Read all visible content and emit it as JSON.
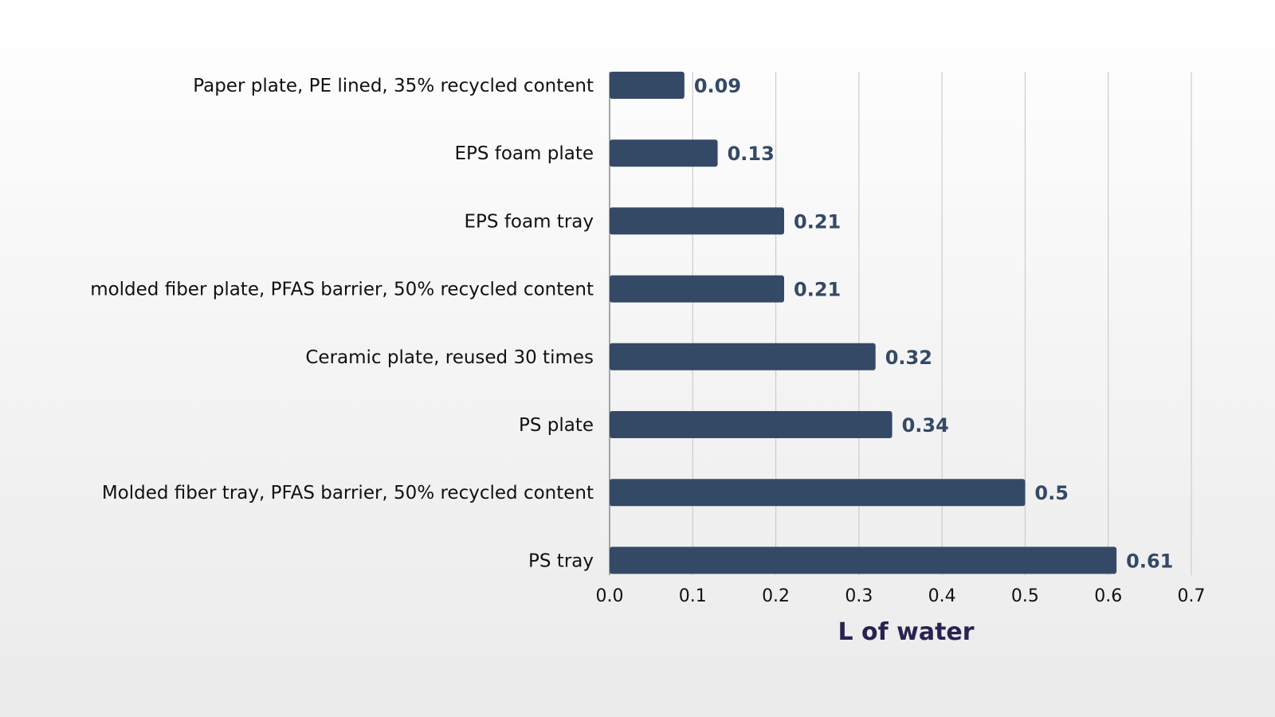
{
  "chart_data": {
    "type": "bar",
    "orientation": "horizontal",
    "categories": [
      "Paper plate, PE lined, 35% recycled content",
      "EPS foam plate",
      "EPS foam tray",
      "molded fiber plate, PFAS barrier, 50% recycled content",
      "Ceramic plate, reused 30 times",
      "PS plate",
      "Molded fiber tray, PFAS barrier, 50% recycled content",
      "PS tray"
    ],
    "values": [
      0.09,
      0.13,
      0.21,
      0.21,
      0.32,
      0.34,
      0.5,
      0.61
    ],
    "data_labels": [
      "0.09",
      "0.13",
      "0.21",
      "0.21",
      "0.32",
      "0.34",
      "0.5",
      "0.61"
    ],
    "title": "",
    "xlabel": "L of water",
    "ylabel": "",
    "xlim": [
      0,
      0.7
    ],
    "x_ticks": [
      "0.0",
      "0.1",
      "0.2",
      "0.3",
      "0.4",
      "0.5",
      "0.6",
      "0.7"
    ],
    "grid": "vertical",
    "legend": "none",
    "colors": {
      "bar": "#344966",
      "value_label": "#344966",
      "axis_title": "#2a2250",
      "grid": "#cccccc",
      "axis": "#888888"
    }
  }
}
